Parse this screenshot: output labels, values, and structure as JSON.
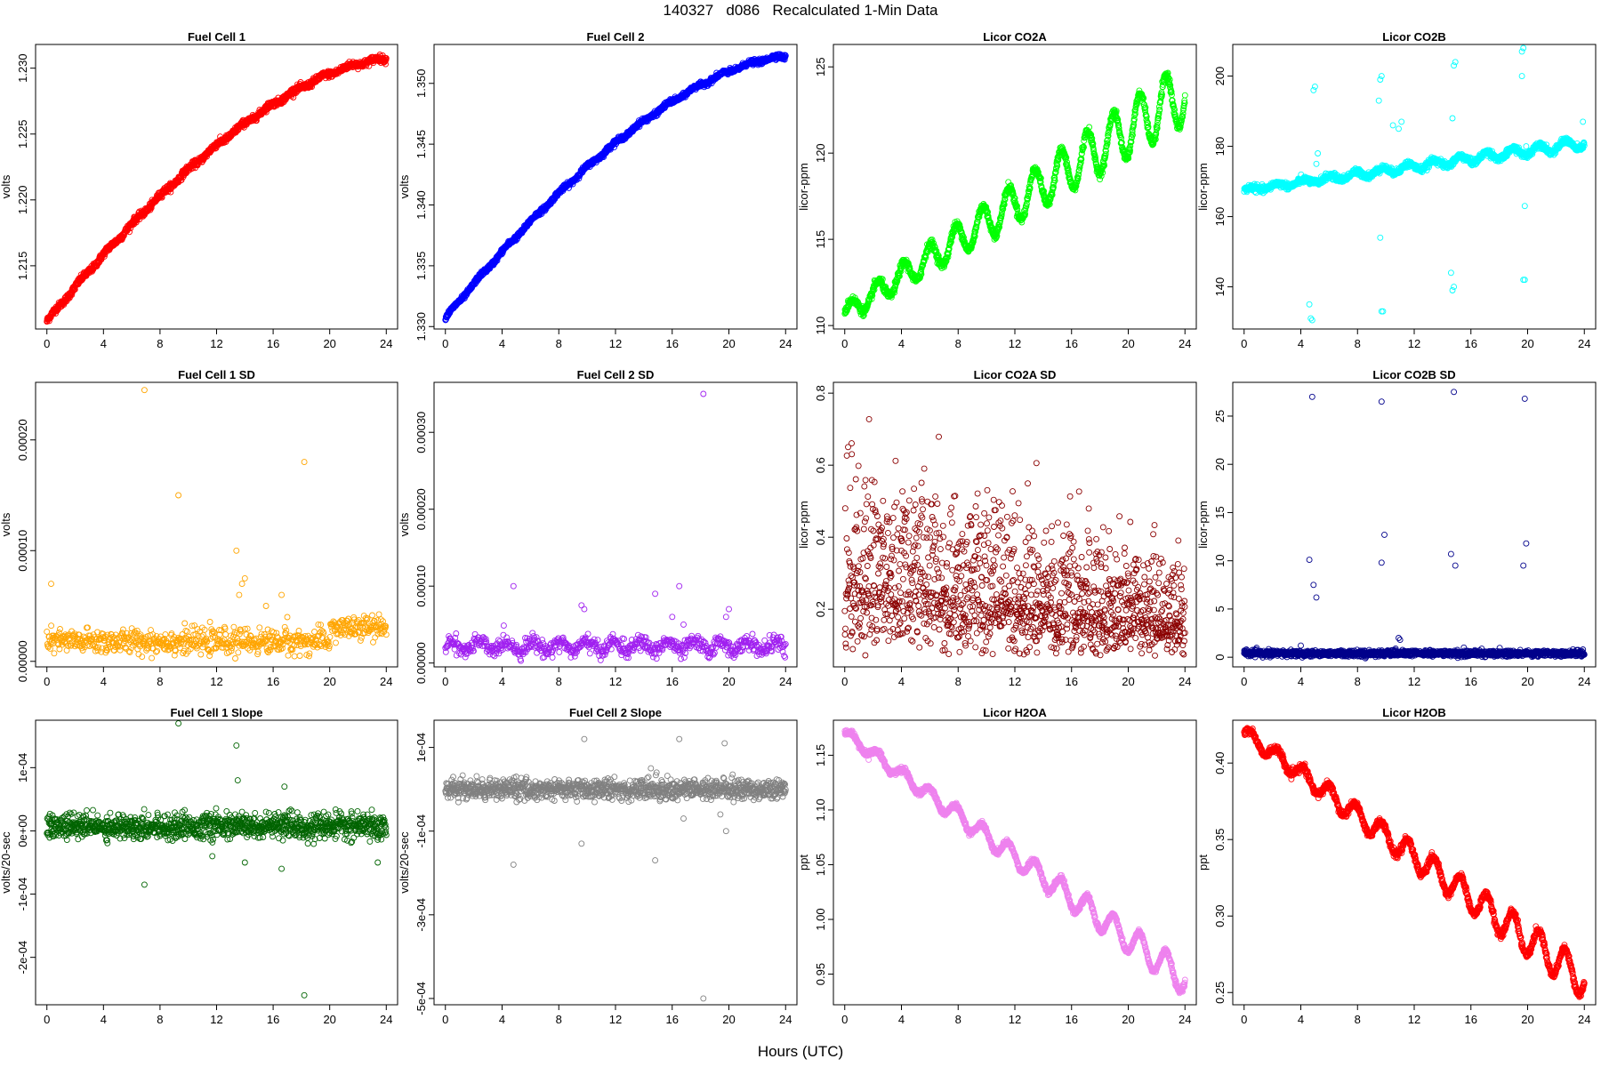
{
  "page": {
    "title": "140327   d086   Recalculated 1-Min Data",
    "x_label": "Hours (UTC)"
  },
  "chart_data": [
    {
      "type": "scatter",
      "title": "Fuel Cell 1",
      "ylabel": "volts",
      "color": "#ff0000",
      "xlim": [
        -0.8,
        24.8
      ],
      "ylim": [
        1.2102,
        1.2318
      ],
      "xticks": [
        0,
        4,
        8,
        12,
        16,
        20,
        24
      ],
      "xtick_labels": [
        "0",
        "4",
        "8",
        "12",
        "16",
        "20",
        "24"
      ],
      "yticks": [
        1.215,
        1.22,
        1.225,
        1.23
      ],
      "ytick_labels": [
        "1.215",
        "1.220",
        "1.225",
        "1.230"
      ],
      "series": [
        {
          "pattern": "monotonic",
          "start": 1.2108,
          "end": 1.2307,
          "shape": "concave",
          "noise": 0.00025,
          "wiggle_amp": 0.0001,
          "wiggle_period": 1.9,
          "point_count": 1440
        }
      ]
    },
    {
      "type": "scatter",
      "title": "Fuel Cell 2",
      "ylabel": "volts",
      "color": "#0000ff",
      "xlim": [
        -0.8,
        24.8
      ],
      "ylim": [
        1.3298,
        1.3532
      ],
      "xticks": [
        0,
        4,
        8,
        12,
        16,
        20,
        24
      ],
      "xtick_labels": [
        "0",
        "4",
        "8",
        "12",
        "16",
        "20",
        "24"
      ],
      "yticks": [
        1.33,
        1.335,
        1.34,
        1.345,
        1.35
      ],
      "ytick_labels": [
        "1.330",
        "1.335",
        "1.340",
        "1.345",
        "1.350"
      ],
      "series": [
        {
          "pattern": "monotonic",
          "start": 1.3307,
          "end": 1.3522,
          "shape": "concave",
          "noise": 0.0002,
          "wiggle_amp": 0.0001,
          "wiggle_period": 1.9,
          "point_count": 1440
        }
      ]
    },
    {
      "type": "scatter",
      "title": "Licor CO2A",
      "ylabel": "licor-ppm",
      "color": "#00ff00",
      "xlim": [
        -0.8,
        24.8
      ],
      "ylim": [
        109.8,
        126.3
      ],
      "xticks": [
        0,
        4,
        8,
        12,
        16,
        20,
        24
      ],
      "xtick_labels": [
        "0",
        "4",
        "8",
        "12",
        "16",
        "20",
        "24"
      ],
      "yticks": [
        110,
        115,
        120,
        125
      ],
      "ytick_labels": [
        "110",
        "115",
        "120",
        "125"
      ],
      "series": [
        {
          "pattern": "oscillating-trend",
          "start": 110.7,
          "end": 123.5,
          "amp_start": 0.5,
          "amp_end": 1.8,
          "period": 1.85,
          "noise": 0.12,
          "point_count": 1440
        }
      ]
    },
    {
      "type": "scatter",
      "title": "Licor CO2B",
      "ylabel": "licor-ppm",
      "color": "#00ffff",
      "xlim": [
        -0.8,
        24.8
      ],
      "ylim": [
        128,
        209
      ],
      "xticks": [
        0,
        4,
        8,
        12,
        16,
        20,
        24
      ],
      "xtick_labels": [
        "0",
        "4",
        "8",
        "12",
        "16",
        "20",
        "24"
      ],
      "yticks": [
        140,
        160,
        180,
        200
      ],
      "ytick_labels": [
        "140",
        "160",
        "180",
        "200"
      ],
      "series": [
        {
          "pattern": "oscillating-trend",
          "start": 167.5,
          "end": 181,
          "amp_start": 0.5,
          "amp_end": 1.5,
          "period": 1.85,
          "noise": 0.45,
          "point_count": 1440,
          "outliers": [
            [
              4.6,
              135
            ],
            [
              4.7,
              131
            ],
            [
              4.8,
              130.5
            ],
            [
              4.9,
              196
            ],
            [
              5.0,
              197
            ],
            [
              5.1,
              175
            ],
            [
              5.2,
              178
            ],
            [
              9.6,
              199
            ],
            [
              9.7,
              200
            ],
            [
              9.6,
              154
            ],
            [
              9.7,
              133
            ],
            [
              9.8,
              133
            ],
            [
              9.5,
              193
            ],
            [
              10.5,
              186
            ],
            [
              10.9,
              185
            ],
            [
              11.1,
              187
            ],
            [
              14.6,
              144
            ],
            [
              14.7,
              139
            ],
            [
              14.8,
              140
            ],
            [
              14.8,
              203
            ],
            [
              14.9,
              204
            ],
            [
              14.7,
              188
            ],
            [
              19.6,
              207
            ],
            [
              19.7,
              208
            ],
            [
              19.6,
              200
            ],
            [
              19.8,
              163
            ],
            [
              19.7,
              142
            ],
            [
              19.8,
              142
            ],
            [
              19.9,
              180
            ],
            [
              23.9,
              187
            ]
          ]
        }
      ]
    },
    {
      "type": "scatter",
      "title": "Fuel Cell 1 SD",
      "ylabel": "volts",
      "color": "#ffa500",
      "xlim": [
        -0.8,
        24.8
      ],
      "ylim": [
        -5e-06,
        0.000252
      ],
      "xticks": [
        0,
        4,
        8,
        12,
        16,
        20,
        24
      ],
      "xtick_labels": [
        "0",
        "4",
        "8",
        "12",
        "16",
        "20",
        "24"
      ],
      "yticks": [
        0,
        0.0001,
        0.0002
      ],
      "ytick_labels": [
        "0.00000",
        "0.00010",
        "0.00020"
      ],
      "series": [
        {
          "pattern": "noise-band",
          "base": 1.8e-05,
          "noise": 5.5e-06,
          "base_after": 3e-05,
          "change_at": 20,
          "point_count": 700,
          "outliers": [
            [
              0.3,
              7e-05
            ],
            [
              6.9,
              0.000245
            ],
            [
              9.3,
              0.00015
            ],
            [
              13.4,
              0.0001
            ],
            [
              13.6,
              6e-05
            ],
            [
              13.8,
              7e-05
            ],
            [
              14.0,
              7.5e-05
            ],
            [
              15.5,
              5e-05
            ],
            [
              16.6,
              6e-05
            ],
            [
              18.2,
              0.00018
            ],
            [
              17.0,
              4e-05
            ]
          ]
        }
      ]
    },
    {
      "type": "scatter",
      "title": "Fuel Cell 2 SD",
      "ylabel": "volts",
      "color": "#a020f0",
      "xlim": [
        -0.8,
        24.8
      ],
      "ylim": [
        -5e-06,
        0.000365
      ],
      "xticks": [
        0,
        4,
        8,
        12,
        16,
        20,
        24
      ],
      "xtick_labels": [
        "0",
        "4",
        "8",
        "12",
        "16",
        "20",
        "24"
      ],
      "yticks": [
        0,
        0.0001,
        0.0002,
        0.0003
      ],
      "ytick_labels": [
        "0.00000",
        "0.00010",
        "0.00020",
        "0.00030"
      ],
      "series": [
        {
          "pattern": "noise-band",
          "base": 2.2e-05,
          "noise": 5e-06,
          "wiggle_amp": 6e-06,
          "wiggle_period": 1.9,
          "point_count": 700,
          "outliers": [
            [
              4.8,
              0.0001
            ],
            [
              9.6,
              7.5e-05
            ],
            [
              9.8,
              7e-05
            ],
            [
              14.8,
              9e-05
            ],
            [
              16.5,
              0.0001
            ],
            [
              16.0,
              6e-05
            ],
            [
              16.8,
              5e-05
            ],
            [
              18.2,
              0.00035
            ],
            [
              19.8,
              6e-05
            ],
            [
              20.0,
              7e-05
            ]
          ]
        }
      ]
    },
    {
      "type": "scatter",
      "title": "Licor CO2A SD",
      "ylabel": "licor-ppm",
      "color": "#8b0000",
      "xlim": [
        -0.8,
        24.8
      ],
      "ylim": [
        0.04,
        0.83
      ],
      "xticks": [
        0,
        4,
        8,
        12,
        16,
        20,
        24
      ],
      "xtick_labels": [
        "0",
        "4",
        "8",
        "12",
        "16",
        "20",
        "24"
      ],
      "yticks": [
        0.2,
        0.4,
        0.6,
        0.8
      ],
      "ytick_labels": [
        "0.2",
        "0.4",
        "0.6",
        "0.8"
      ],
      "series": [
        {
          "pattern": "noise-band",
          "base": 0.28,
          "base_after": 0.16,
          "noise": 0.14,
          "decay": true,
          "point_count": 1440
        }
      ]
    },
    {
      "type": "scatter",
      "title": "Licor CO2B SD",
      "ylabel": "licor-ppm",
      "color": "#00008b",
      "xlim": [
        -0.8,
        24.8
      ],
      "ylim": [
        -1,
        28.5
      ],
      "xticks": [
        0,
        4,
        8,
        12,
        16,
        20,
        24
      ],
      "xtick_labels": [
        "0",
        "4",
        "8",
        "12",
        "16",
        "20",
        "24"
      ],
      "yticks": [
        0,
        5,
        10,
        15,
        20,
        25
      ],
      "ytick_labels": [
        "0",
        "5",
        "10",
        "15",
        "20",
        "25"
      ],
      "series": [
        {
          "pattern": "noise-band",
          "base": 0.4,
          "noise": 0.15,
          "point_count": 1440,
          "outliers": [
            [
              4.0,
              1.2
            ],
            [
              4.6,
              10.1
            ],
            [
              4.8,
              27
            ],
            [
              4.9,
              7.5
            ],
            [
              5.1,
              6.2
            ],
            [
              9.7,
              26.5
            ],
            [
              9.7,
              9.8
            ],
            [
              9.9,
              12.7
            ],
            [
              10.9,
              2
            ],
            [
              11.0,
              1.8
            ],
            [
              14.6,
              10.7
            ],
            [
              14.8,
              27.5
            ],
            [
              14.9,
              9.5
            ],
            [
              15.5,
              1
            ],
            [
              19.7,
              9.5
            ],
            [
              19.8,
              26.8
            ],
            [
              19.9,
              11.8
            ],
            [
              23.9,
              0.8
            ]
          ]
        }
      ]
    },
    {
      "type": "scatter",
      "title": "Fuel Cell 1 Slope",
      "ylabel": "volts/20-sec",
      "color": "#006400",
      "xlim": [
        -0.8,
        24.8
      ],
      "ylim": [
        -0.000275,
        0.000175
      ],
      "xticks": [
        0,
        4,
        8,
        12,
        16,
        20,
        24
      ],
      "xtick_labels": [
        "0",
        "4",
        "8",
        "12",
        "16",
        "20",
        "24"
      ],
      "yticks": [
        -0.0002,
        -0.0001,
        0,
        0.0001
      ],
      "ytick_labels": [
        "-2e-04",
        "-1e-04",
        "0e+00",
        "1e-04"
      ],
      "series": [
        {
          "pattern": "noise-band",
          "base": 7e-06,
          "noise": 9.5e-06,
          "point_count": 1100,
          "outliers": [
            [
              6.9,
              -8.5e-05
            ],
            [
              9.3,
              0.00017
            ],
            [
              13.4,
              0.000135
            ],
            [
              13.5,
              8e-05
            ],
            [
              13.8,
              3e-05
            ],
            [
              14.0,
              -5e-05
            ],
            [
              15.5,
              3e-05
            ],
            [
              16.6,
              -6e-05
            ],
            [
              16.8,
              7e-05
            ],
            [
              18.2,
              -0.00026
            ],
            [
              11.7,
              -4e-05
            ],
            [
              23.4,
              -5e-05
            ]
          ]
        }
      ]
    },
    {
      "type": "scatter",
      "title": "Fuel Cell 2 Slope",
      "ylabel": "volts/20-sec",
      "color": "#808080",
      "xlim": [
        -0.8,
        24.8
      ],
      "ylim": [
        -0.000515,
        0.000165
      ],
      "xticks": [
        0,
        4,
        8,
        12,
        16,
        20,
        24
      ],
      "xtick_labels": [
        "0",
        "4",
        "8",
        "12",
        "16",
        "20",
        "24"
      ],
      "yticks": [
        -0.0005,
        -0.0003,
        -0.0001,
        0.0001
      ],
      "ytick_labels": [
        "-5e-04",
        "-3e-04",
        "-1e-04",
        "1e-04"
      ],
      "series": [
        {
          "pattern": "noise-band",
          "base": 0.0,
          "noise": 1.2e-05,
          "point_count": 1100,
          "outliers": [
            [
              4.8,
              -0.00018
            ],
            [
              5.0,
              3e-05
            ],
            [
              9.6,
              -0.00013
            ],
            [
              9.8,
              0.00012
            ],
            [
              14.5,
              5e-05
            ],
            [
              14.8,
              -0.00017
            ],
            [
              14.9,
              4e-05
            ],
            [
              16.5,
              0.00012
            ],
            [
              16.8,
              -7e-05
            ],
            [
              18.2,
              -0.0005
            ],
            [
              19.7,
              0.00011
            ],
            [
              19.8,
              -0.0001
            ],
            [
              19.4,
              -6e-05
            ]
          ]
        }
      ]
    },
    {
      "type": "scatter",
      "title": "Licor H2OA",
      "ylabel": "ppt",
      "color": "#ee82ee",
      "xlim": [
        -0.8,
        24.8
      ],
      "ylim": [
        0.922,
        1.182
      ],
      "xticks": [
        0,
        4,
        8,
        12,
        16,
        20,
        24
      ],
      "xtick_labels": [
        "0",
        "4",
        "8",
        "12",
        "16",
        "20",
        "24"
      ],
      "yticks": [
        0.95,
        1.0,
        1.05,
        1.1,
        1.15
      ],
      "ytick_labels": [
        "0.95",
        "1.00",
        "1.05",
        "1.10",
        "1.15"
      ],
      "series": [
        {
          "pattern": "oscillating-trend",
          "start": 1.17,
          "end": 0.945,
          "amp_start": 0.004,
          "amp_end": 0.014,
          "period": 1.85,
          "noise": 0.0012,
          "point_count": 1440
        }
      ]
    },
    {
      "type": "scatter",
      "title": "Licor H2OB",
      "ylabel": "ppt",
      "color": "#ff0000",
      "xlim": [
        -0.8,
        24.8
      ],
      "ylim": [
        0.242,
        0.428
      ],
      "xticks": [
        0,
        4,
        8,
        12,
        16,
        20,
        24
      ],
      "xtick_labels": [
        "0",
        "4",
        "8",
        "12",
        "16",
        "20",
        "24"
      ],
      "yticks": [
        0.25,
        0.3,
        0.35,
        0.4
      ],
      "ytick_labels": [
        "0.25",
        "0.30",
        "0.35",
        "0.40"
      ],
      "series": [
        {
          "pattern": "oscillating-trend",
          "start": 0.42,
          "end": 0.258,
          "amp_start": 0.004,
          "amp_end": 0.012,
          "period": 1.85,
          "noise": 0.0012,
          "point_count": 1440
        }
      ]
    }
  ]
}
